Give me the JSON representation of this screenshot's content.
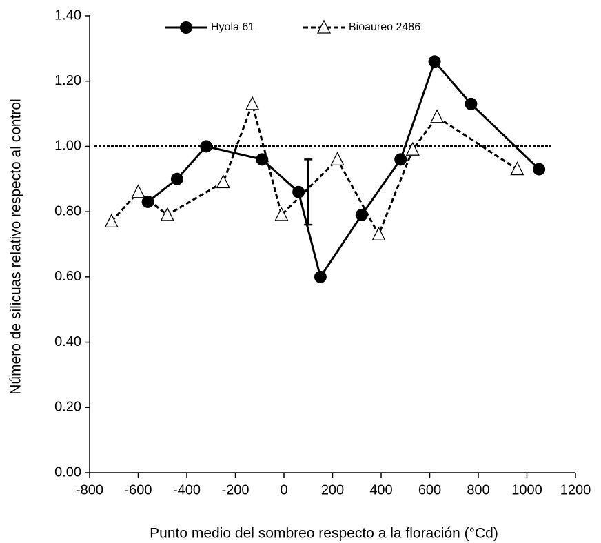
{
  "chart_data": {
    "type": "line",
    "x_label": "Punto medio del sombreo respecto a la floración (°Cd)",
    "y_label": "Número de silicuas relativo respecto al control",
    "xlim": [
      -800,
      1200
    ],
    "xticks": [
      -800,
      -600,
      -400,
      -200,
      0,
      200,
      400,
      600,
      800,
      1000,
      1200
    ],
    "ylim": [
      0,
      1.4
    ],
    "yticks": [
      {
        "value": 0,
        "label": "0.00"
      },
      {
        "value": 0.2,
        "label": "0.20"
      },
      {
        "value": 0.4,
        "label": "0.40"
      },
      {
        "value": 0.6,
        "label": "0.60"
      },
      {
        "value": 0.8,
        "label": "0.80"
      },
      {
        "value": 1.0,
        "label": "1.00"
      },
      {
        "value": 1.2,
        "label": "1.20"
      },
      {
        "value": 1.4,
        "label": "1.40"
      }
    ],
    "legend": "top",
    "reference_line": 1.0,
    "error_bar": {
      "x": 100,
      "y": 0.86,
      "error": 0.1
    },
    "series": [
      {
        "name": "Hyola 61",
        "color": "#000000",
        "marker": "circle",
        "dashed": false,
        "x": [
          -560,
          -440,
          -320,
          -90,
          60,
          150,
          320,
          480,
          620,
          770,
          1050
        ],
        "values": [
          0.83,
          0.9,
          1.0,
          0.96,
          0.86,
          0.6,
          0.79,
          0.96,
          1.26,
          1.13,
          0.93
        ]
      },
      {
        "name": "Bioaureo 2486",
        "color": "#000000",
        "marker": "triangle",
        "dashed": true,
        "x": [
          -710,
          -600,
          -480,
          -250,
          -130,
          -10,
          220,
          390,
          530,
          630,
          960
        ],
        "values": [
          0.77,
          0.86,
          0.79,
          0.89,
          1.13,
          0.79,
          0.96,
          0.73,
          0.99,
          1.09,
          0.93
        ]
      }
    ]
  }
}
